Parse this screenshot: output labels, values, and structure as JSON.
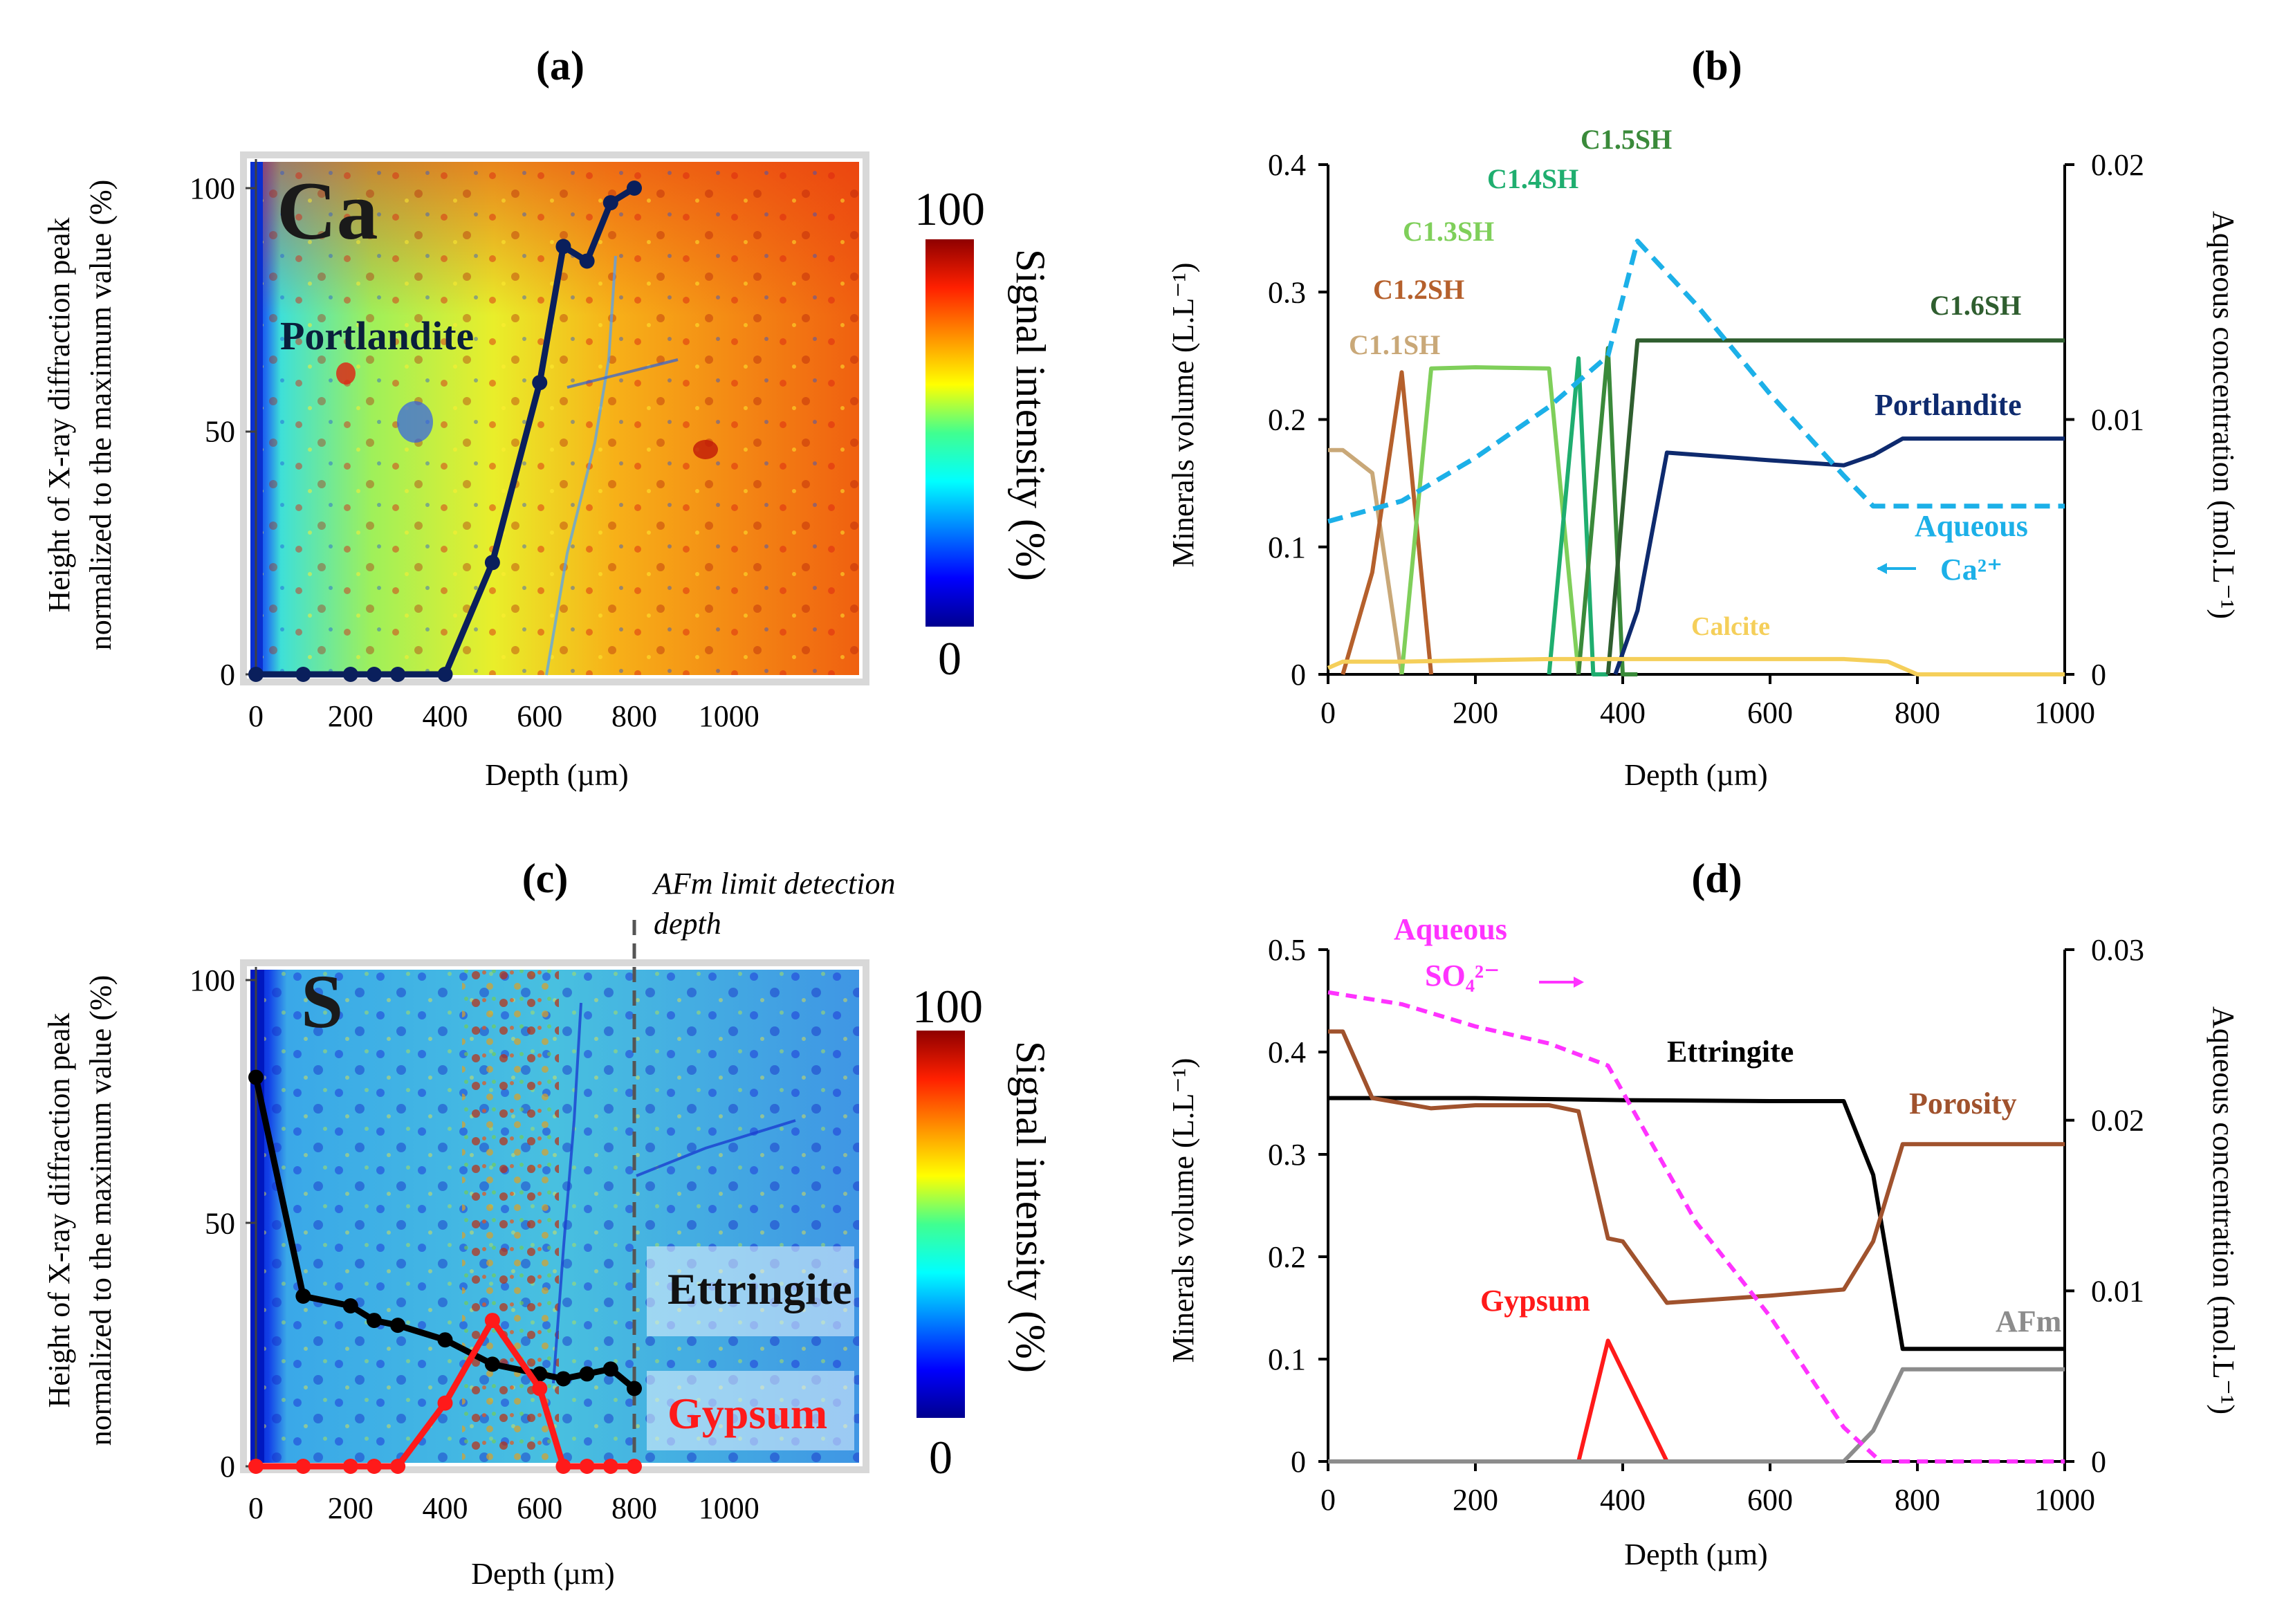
{
  "colors": {
    "ca_line": "#0a1f5c",
    "ettringite_line": "#000000",
    "gypsum_line": "#ff1a1a",
    "c11sh": "#c9a878",
    "c12sh": "#b5602c",
    "c13sh": "#7fcf5a",
    "c14sh": "#1fae6f",
    "c15sh": "#3a8a3a",
    "c16sh": "#2f5e2f",
    "portlandite_b": "#0e2a6e",
    "aqueous_ca": "#1cb0e8",
    "calcite": "#f5cf5a",
    "ettringite_d": "#000000",
    "porosity": "#a0522d",
    "gypsum_d": "#ff1a1a",
    "afm": "#8c8c8c",
    "aqueous_so4": "#ff33ff"
  },
  "panel_a": {
    "label": "(a)",
    "element": "Ca",
    "mineral_label": "Portlandite",
    "ylabel_line1": "Height of X-ray diffraction peak",
    "ylabel_line2": "normalized to the maximum value (%)",
    "xlabel": "Depth (µm)",
    "colorbar_max": "100",
    "colorbar_min": "0",
    "colorbar_label": "Signal intensity (%)"
  },
  "panel_b": {
    "label": "(b)",
    "ylabel_left": "Minerals volume (L.L⁻¹)",
    "ylabel_right": "Aqueous concentration (mol.L⁻¹)",
    "xlabel": "Depth (µm)",
    "labels": {
      "c11sh": "C1.1SH",
      "c12sh": "C1.2SH",
      "c13sh": "C1.3SH",
      "c14sh": "C1.4SH",
      "c15sh": "C1.5SH",
      "c16sh": "C1.6SH",
      "portlandite": "Portlandite",
      "aqueous": "Aqueous",
      "ca": "Ca²⁺",
      "calcite": "Calcite"
    }
  },
  "panel_c": {
    "label": "(c)",
    "element": "S",
    "annotation_line1": "AFm limit detection",
    "annotation_line2": "depth",
    "ettringite_label": "Ettringite",
    "gypsum_label": "Gypsum",
    "ylabel_line1": "Height of X-ray diffraction peak",
    "ylabel_line2": "normalized to the maximum value (%)",
    "xlabel": "Depth (µm)",
    "colorbar_max": "100",
    "colorbar_min": "0",
    "colorbar_label": "Signal intensity (%)"
  },
  "panel_d": {
    "label": "(d)",
    "ylabel_left": "Minerals volume (L.L⁻¹)",
    "ylabel_right": "Aqueous concentration (mol.L⁻¹)",
    "xlabel": "Depth (µm)",
    "labels": {
      "aqueous": "Aqueous",
      "so4": "SO₄²⁻",
      "ettringite": "Ettringite",
      "porosity": "Porosity",
      "gypsum": "Gypsum",
      "afm": "AFm"
    }
  },
  "chart_data": [
    {
      "panel": "a",
      "type": "line",
      "xlabel": "Depth (µm)",
      "ylabel": "Height of X-ray diffraction peak normalized to the maximum value (%)",
      "xticks": [
        0,
        200,
        400,
        600,
        800,
        1000
      ],
      "yticks": [
        0,
        50,
        100
      ],
      "xlim": [
        0,
        1300
      ],
      "ylim": [
        0,
        105
      ],
      "series": [
        {
          "name": "Portlandite",
          "x": [
            0,
            100,
            200,
            250,
            300,
            400,
            500,
            600,
            650,
            700,
            750,
            800
          ],
          "y": [
            0,
            0,
            0,
            0,
            0,
            0,
            23,
            60,
            88,
            85,
            97,
            100
          ]
        }
      ]
    },
    {
      "panel": "b",
      "type": "line",
      "xlabel": "Depth (µm)",
      "ylabel": "Minerals volume (L.L⁻¹)",
      "ylabel_right": "Aqueous concentration (mol.L⁻¹)",
      "xticks": [
        0,
        200,
        400,
        600,
        800,
        1000
      ],
      "yticks": [
        "0",
        "0.1",
        "0.2",
        "0.3",
        "0.4"
      ],
      "yticks_right": [
        "0",
        "0.01",
        "0.02"
      ],
      "xlim": [
        0,
        1000
      ],
      "ylim": [
        0,
        0.4
      ],
      "ylim_right": [
        0,
        0.02
      ],
      "series": [
        {
          "name": "C1.1SH",
          "x": [
            0,
            20,
            60,
            100
          ],
          "y": [
            0.176,
            0.176,
            0.158,
            0
          ]
        },
        {
          "name": "C1.2SH",
          "x": [
            20,
            60,
            100,
            140
          ],
          "y": [
            0,
            0.08,
            0.237,
            0
          ]
        },
        {
          "name": "C1.3SH",
          "x": [
            100,
            140,
            200,
            300,
            340
          ],
          "y": [
            0,
            0.24,
            0.241,
            0.24,
            0
          ]
        },
        {
          "name": "C1.4SH",
          "x": [
            300,
            340,
            360,
            380
          ],
          "y": [
            0,
            0.248,
            0,
            0
          ]
        },
        {
          "name": "C1.5SH",
          "x": [
            340,
            380,
            400,
            420
          ],
          "y": [
            0,
            0.256,
            0,
            0
          ]
        },
        {
          "name": "C1.6SH",
          "x": [
            380,
            420,
            1000
          ],
          "y": [
            0,
            0.262,
            0.262
          ]
        },
        {
          "name": "Portlandite",
          "x": [
            390,
            420,
            460,
            600,
            700,
            740,
            780,
            1000
          ],
          "y": [
            0,
            0.05,
            0.174,
            0.168,
            0.164,
            0.172,
            0.185,
            0.185
          ]
        },
        {
          "name": "Calcite",
          "x": [
            0,
            20,
            100,
            300,
            500,
            700,
            760,
            800,
            1000
          ],
          "y": [
            0.005,
            0.01,
            0.01,
            0.012,
            0.012,
            0.012,
            0.01,
            0,
            0
          ]
        },
        {
          "name": "Aqueous Ca²⁺",
          "axis": "right",
          "x": [
            0,
            100,
            200,
            300,
            380,
            420,
            500,
            600,
            700,
            740,
            800,
            1000
          ],
          "y": [
            0.006,
            0.0068,
            0.0085,
            0.0105,
            0.0125,
            0.017,
            0.0145,
            0.011,
            0.0078,
            0.0066,
            0.0066,
            0.0066
          ]
        }
      ]
    },
    {
      "panel": "c",
      "type": "line",
      "xlabel": "Depth (µm)",
      "ylabel": "Height of X-ray diffraction peak normalized to the maximum value (%)",
      "xticks": [
        0,
        200,
        400,
        600,
        800,
        1000
      ],
      "yticks": [
        0,
        50,
        100
      ],
      "xlim": [
        0,
        1300
      ],
      "ylim": [
        0,
        105
      ],
      "series": [
        {
          "name": "Ettringite",
          "x": [
            0,
            100,
            200,
            250,
            300,
            400,
            500,
            600,
            650,
            700,
            750,
            800
          ],
          "y": [
            80,
            35,
            33,
            30,
            29,
            26,
            21,
            19,
            18,
            19,
            20,
            16
          ]
        },
        {
          "name": "Gypsum",
          "x": [
            0,
            100,
            200,
            250,
            300,
            400,
            500,
            600,
            650,
            700,
            750,
            800
          ],
          "y": [
            0,
            0,
            0,
            0,
            0,
            13,
            30,
            16,
            0,
            0,
            0,
            0
          ]
        }
      ]
    },
    {
      "panel": "d",
      "type": "line",
      "xlabel": "Depth (µm)",
      "ylabel": "Minerals volume (L.L⁻¹)",
      "ylabel_right": "Aqueous concentration (mol.L⁻¹)",
      "xticks": [
        0,
        200,
        400,
        600,
        800,
        1000
      ],
      "yticks": [
        "0",
        "0.1",
        "0.2",
        "0.3",
        "0.4",
        "0.5"
      ],
      "yticks_right": [
        "0",
        "0.01",
        "0.02",
        "0.03"
      ],
      "xlim": [
        0,
        1000
      ],
      "ylim": [
        0,
        0.5
      ],
      "ylim_right": [
        0,
        0.03
      ],
      "series": [
        {
          "name": "Ettringite",
          "x": [
            0,
            200,
            400,
            600,
            700,
            740,
            780,
            1000
          ],
          "y": [
            0.355,
            0.355,
            0.353,
            0.352,
            0.352,
            0.28,
            0.11,
            0.11
          ]
        },
        {
          "name": "Porosity",
          "x": [
            0,
            20,
            60,
            140,
            200,
            300,
            340,
            360,
            380,
            400,
            460,
            600,
            700,
            740,
            780,
            1000
          ],
          "y": [
            0.42,
            0.42,
            0.355,
            0.345,
            0.348,
            0.348,
            0.342,
            0.28,
            0.218,
            0.215,
            0.155,
            0.162,
            0.168,
            0.215,
            0.31,
            0.31
          ]
        },
        {
          "name": "Gypsum",
          "x": [
            340,
            380,
            460
          ],
          "y": [
            0,
            0.118,
            0
          ]
        },
        {
          "name": "AFm",
          "x": [
            0,
            700,
            740,
            780,
            1000
          ],
          "y": [
            0,
            0,
            0.03,
            0.09,
            0.09
          ]
        },
        {
          "name": "Aqueous SO₄²⁻",
          "axis": "right",
          "x": [
            0,
            100,
            200,
            300,
            380,
            500,
            600,
            700,
            750,
            1000
          ],
          "y": [
            0.0275,
            0.0268,
            0.0255,
            0.0245,
            0.0232,
            0.014,
            0.0085,
            0.002,
            0,
            0
          ]
        }
      ]
    }
  ]
}
